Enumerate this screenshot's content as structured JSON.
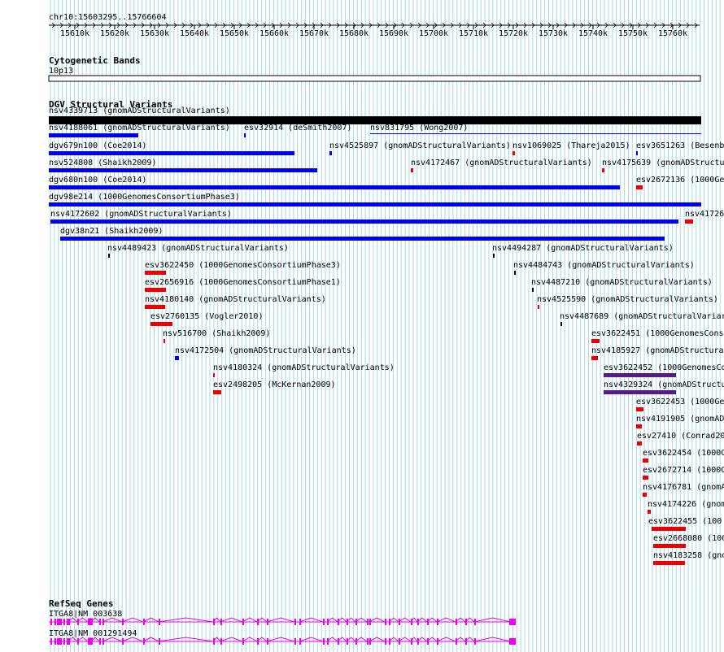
{
  "ruler": {
    "range_label": "chr10:15603295..15766604",
    "ticks": [
      "15610k",
      "15620k",
      "15630k",
      "15640k",
      "15650k",
      "15660k",
      "15670k",
      "15680k",
      "15690k",
      "15700k",
      "15710k",
      "15720k",
      "15730k",
      "15740k",
      "15750k",
      "15760k"
    ]
  },
  "cytoband": {
    "title": "Cytogenetic Bands",
    "band": "10p13"
  },
  "dgv": {
    "title": "DGV Structural Variants",
    "features": [
      {
        "label": "nsv4339713 (gnomADStructuralVariants)",
        "color": "black"
      },
      {
        "label": "nsv4188061 (gnomADStructuralVariants)",
        "color": "blue"
      },
      {
        "label": "esv32914 (deSmith2007)",
        "color": "blue"
      },
      {
        "label": "nsv831795 (Wong2007)",
        "color": "blue"
      },
      {
        "label": "dgv679n100 (Coe2014)",
        "color": "blue"
      },
      {
        "label": "nsv4525897 (gnomADStructuralVariants)",
        "color": "blue"
      },
      {
        "label": "nsv1069025 (Thareja2015)",
        "color": "red"
      },
      {
        "label": "esv3651263 (Besenb",
        "color": "blue"
      },
      {
        "label": "nsv524808 (Shaikh2009)",
        "color": "blue"
      },
      {
        "label": "nsv4172467 (gnomADStructuralVariants)",
        "color": "red"
      },
      {
        "label": "nsv4175639 (gnomADStructu",
        "color": "red"
      },
      {
        "label": "dgv680n100 (Coe2014)",
        "color": "blue"
      },
      {
        "label": "esv2672136 (1000Ge",
        "color": "red"
      },
      {
        "label": "dgv98e214 (1000GenomesConsortiumPhase3)",
        "color": "blue"
      },
      {
        "label": "nsv4172602 (gnomADStructuralVariants)",
        "color": "blue"
      },
      {
        "label": "nsv41726",
        "color": "red"
      },
      {
        "label": "dgv38n21 (Shaikh2009)",
        "color": "blue"
      },
      {
        "label": "nsv4489423 (gnomADStructuralVariants)",
        "color": "black"
      },
      {
        "label": "nsv4494287 (gnomADStructuralVariants)",
        "color": "black"
      },
      {
        "label": "esv3622450 (1000GenomesConsortiumPhase3)",
        "color": "red"
      },
      {
        "label": "nsv4484743 (gnomADStructuralVariants)",
        "color": "black"
      },
      {
        "label": "esv2656916 (1000GenomesConsortiumPhase1)",
        "color": "red"
      },
      {
        "label": "nsv4487210 (gnomADStructuralVariants)",
        "color": "black"
      },
      {
        "label": "nsv4180140 (gnomADStructuralVariants)",
        "color": "red"
      },
      {
        "label": "nsv4525590 (gnomADStructuralVariants)",
        "color": "red"
      },
      {
        "label": "esv2760135 (Vogler2010)",
        "color": "red"
      },
      {
        "label": "nsv4487689 (gnomADStructuralVariar",
        "color": "black"
      },
      {
        "label": "nsv516700 (Shaikh2009)",
        "color": "red"
      },
      {
        "label": "esv3622451 (1000GenomesConso",
        "color": "red"
      },
      {
        "label": "nsv4172504 (gnomADStructuralVariants)",
        "color": "blue"
      },
      {
        "label": "nsv4185927 (gnomADStructura",
        "color": "red"
      },
      {
        "label": "nsv4180324 (gnomADStructuralVariants)",
        "color": "red"
      },
      {
        "label": "esv3622452 (1000GenomesCo",
        "color": "purple"
      },
      {
        "label": "esv2498205 (McKernan2009)",
        "color": "red"
      },
      {
        "label": "nsv4329324 (gnomADStructu",
        "color": "purple"
      },
      {
        "label": "esv3622453 (1000Ge",
        "color": "red"
      },
      {
        "label": "nsv4191905 (gnomAD",
        "color": "red"
      },
      {
        "label": "esv27410 (Conrad20",
        "color": "red"
      },
      {
        "label": "esv3622454 (1000G",
        "color": "red"
      },
      {
        "label": "esv2672714 (1000G",
        "color": "red"
      },
      {
        "label": "nsv4176781 (gnomA",
        "color": "red"
      },
      {
        "label": "nsv4174226 (gnom",
        "color": "red"
      },
      {
        "label": "esv3622455 (100",
        "color": "red"
      },
      {
        "label": "esv2668080 (100",
        "color": "red"
      },
      {
        "label": "nsv4183258 (gno",
        "color": "red"
      }
    ]
  },
  "refseq": {
    "title": "RefSeq Genes",
    "transcripts": [
      {
        "label": "ITGA8|NM_003638"
      },
      {
        "label": "ITGA8|NM_001291494"
      }
    ]
  },
  "colors": {
    "grid": "#a8d8e8",
    "blue": "#0000ee",
    "red": "#ee0000",
    "purple": "#551a8b",
    "black": "#000000",
    "gene": "#ee00ee"
  }
}
